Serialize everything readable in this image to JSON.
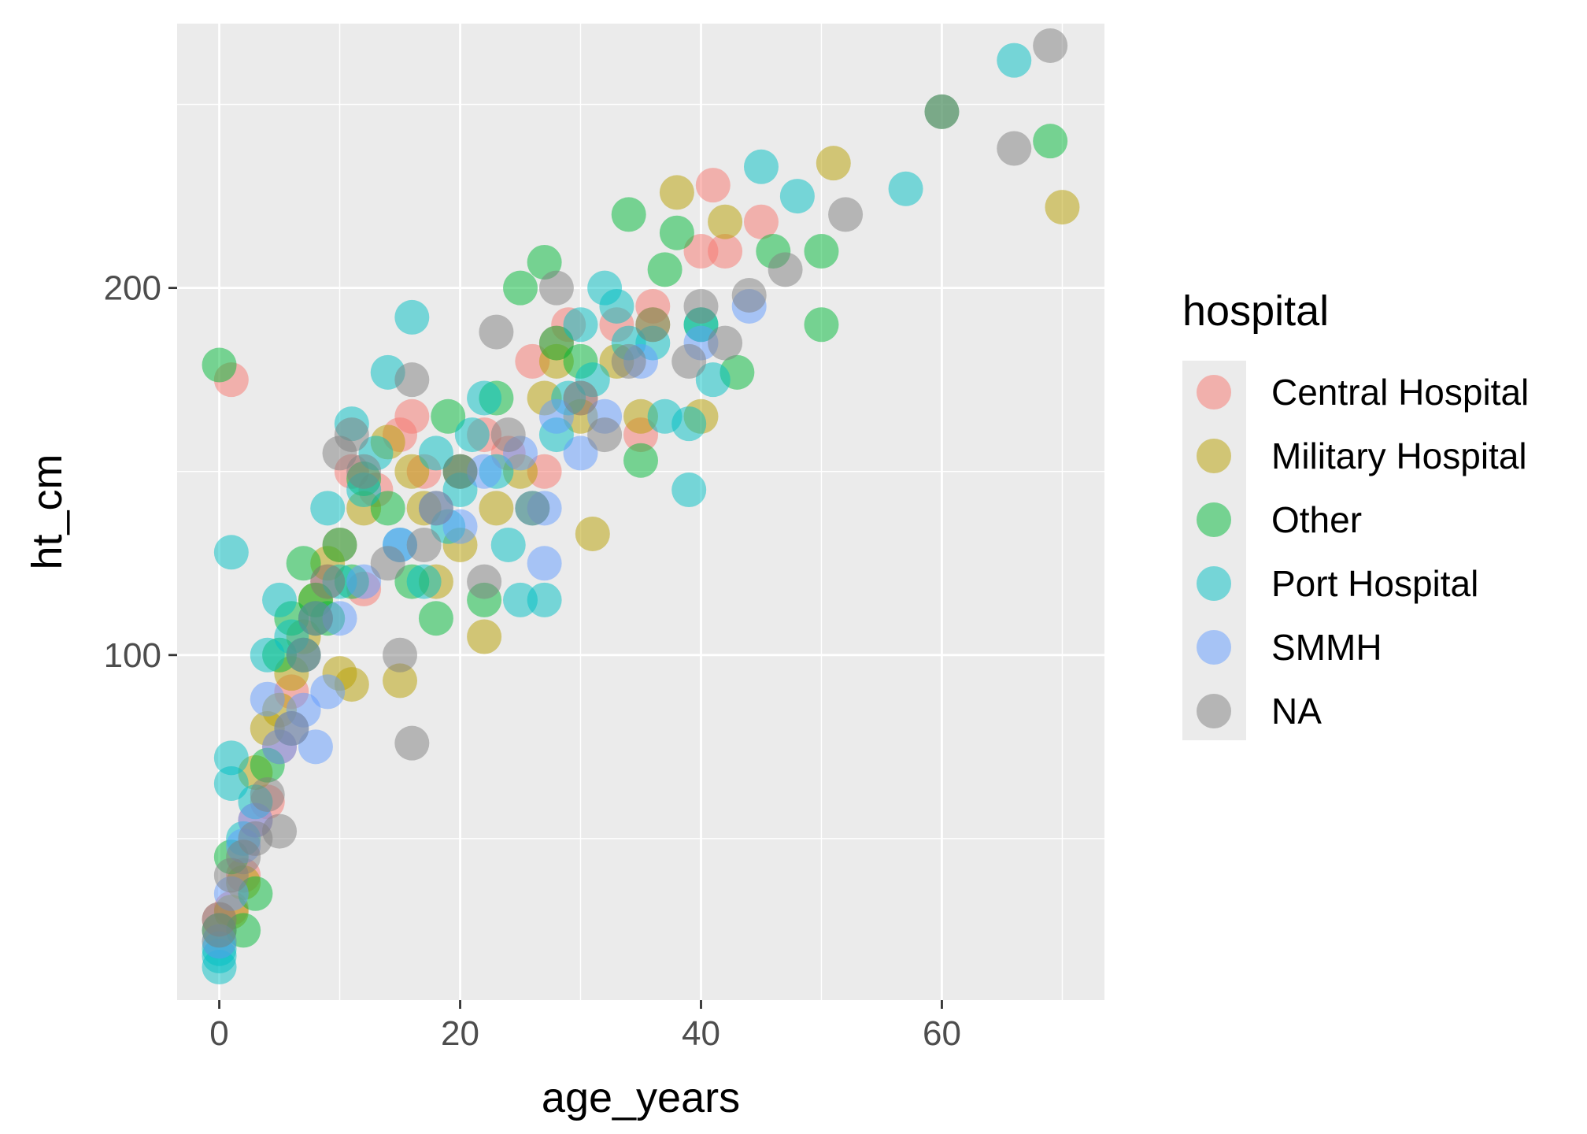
{
  "chart_data": {
    "type": "scatter",
    "title": "",
    "xlabel": "age_years",
    "ylabel": "ht_cm",
    "xlim": [
      -3.5,
      73.5
    ],
    "ylim": [
      6,
      272
    ],
    "x_ticks": [
      0,
      20,
      40,
      60
    ],
    "x_tick_labels": [
      "0",
      "20",
      "40",
      "60"
    ],
    "y_ticks": [
      100,
      200
    ],
    "y_tick_labels": [
      "100",
      "200"
    ],
    "x_minor_ticks": [
      10,
      30,
      50,
      70
    ],
    "y_minor_ticks": [
      50,
      150,
      250
    ],
    "grid": true,
    "panel_background": "#ebebeb",
    "point_alpha": 0.5,
    "legend": {
      "title": "hospital",
      "position": "right"
    },
    "series": [
      {
        "name": "Central Hospital",
        "color": "#F8766D",
        "points": [
          [
            0,
            28
          ],
          [
            1,
            31
          ],
          [
            1,
            175
          ],
          [
            2,
            40
          ],
          [
            3,
            55
          ],
          [
            4,
            60
          ],
          [
            5,
            75
          ],
          [
            6,
            90
          ],
          [
            7,
            100
          ],
          [
            8,
            110
          ],
          [
            9,
            120
          ],
          [
            10,
            130
          ],
          [
            11,
            150
          ],
          [
            12,
            118
          ],
          [
            13,
            145
          ],
          [
            15,
            160
          ],
          [
            16,
            165
          ],
          [
            17,
            150
          ],
          [
            20,
            150
          ],
          [
            22,
            160
          ],
          [
            24,
            155
          ],
          [
            26,
            180
          ],
          [
            27,
            150
          ],
          [
            28,
            185
          ],
          [
            29,
            190
          ],
          [
            30,
            170
          ],
          [
            33,
            190
          ],
          [
            35,
            160
          ],
          [
            36,
            195
          ],
          [
            40,
            210
          ],
          [
            41,
            228
          ],
          [
            42,
            210
          ],
          [
            45,
            218
          ]
        ]
      },
      {
        "name": "Military Hospital",
        "color": "#B79F00",
        "points": [
          [
            0,
            22
          ],
          [
            1,
            30
          ],
          [
            2,
            38
          ],
          [
            3,
            68
          ],
          [
            4,
            80
          ],
          [
            5,
            85
          ],
          [
            6,
            95
          ],
          [
            7,
            105
          ],
          [
            8,
            115
          ],
          [
            9,
            125
          ],
          [
            10,
            95
          ],
          [
            11,
            92
          ],
          [
            12,
            140
          ],
          [
            14,
            158
          ],
          [
            15,
            93
          ],
          [
            16,
            150
          ],
          [
            17,
            140
          ],
          [
            18,
            120
          ],
          [
            20,
            130
          ],
          [
            22,
            105
          ],
          [
            23,
            140
          ],
          [
            25,
            150
          ],
          [
            27,
            170
          ],
          [
            28,
            180
          ],
          [
            30,
            165
          ],
          [
            31,
            133
          ],
          [
            33,
            180
          ],
          [
            35,
            165
          ],
          [
            36,
            190
          ],
          [
            38,
            226
          ],
          [
            40,
            165
          ],
          [
            42,
            218
          ],
          [
            51,
            234
          ],
          [
            70,
            222
          ]
        ]
      },
      {
        "name": "Other",
        "color": "#00BA38",
        "points": [
          [
            0,
            25
          ],
          [
            0,
            179
          ],
          [
            1,
            45
          ],
          [
            2,
            25
          ],
          [
            3,
            35
          ],
          [
            4,
            70
          ],
          [
            5,
            100
          ],
          [
            6,
            110
          ],
          [
            7,
            125
          ],
          [
            8,
            115
          ],
          [
            9,
            110
          ],
          [
            10,
            130
          ],
          [
            11,
            120
          ],
          [
            12,
            148
          ],
          [
            14,
            140
          ],
          [
            16,
            120
          ],
          [
            18,
            110
          ],
          [
            19,
            165
          ],
          [
            20,
            150
          ],
          [
            22,
            115
          ],
          [
            23,
            170
          ],
          [
            25,
            200
          ],
          [
            27,
            207
          ],
          [
            28,
            185
          ],
          [
            30,
            180
          ],
          [
            34,
            220
          ],
          [
            35,
            153
          ],
          [
            37,
            205
          ],
          [
            38,
            215
          ],
          [
            40,
            190
          ],
          [
            43,
            177
          ],
          [
            46,
            210
          ],
          [
            50,
            210
          ],
          [
            50,
            190
          ],
          [
            60,
            248
          ],
          [
            69,
            240
          ]
        ]
      },
      {
        "name": "Port Hospital",
        "color": "#00BFC4",
        "points": [
          [
            0,
            15
          ],
          [
            0,
            18
          ],
          [
            0,
            20
          ],
          [
            1,
            72
          ],
          [
            1,
            65
          ],
          [
            1,
            128
          ],
          [
            2,
            50
          ],
          [
            3,
            60
          ],
          [
            4,
            100
          ],
          [
            5,
            115
          ],
          [
            6,
            105
          ],
          [
            7,
            100
          ],
          [
            8,
            110
          ],
          [
            9,
            140
          ],
          [
            10,
            120
          ],
          [
            11,
            163
          ],
          [
            12,
            145
          ],
          [
            13,
            155
          ],
          [
            14,
            177
          ],
          [
            15,
            130
          ],
          [
            16,
            192
          ],
          [
            17,
            120
          ],
          [
            18,
            155
          ],
          [
            19,
            135
          ],
          [
            20,
            145
          ],
          [
            21,
            160
          ],
          [
            22,
            170
          ],
          [
            23,
            150
          ],
          [
            24,
            130
          ],
          [
            25,
            115
          ],
          [
            26,
            140
          ],
          [
            27,
            115
          ],
          [
            28,
            160
          ],
          [
            29,
            170
          ],
          [
            30,
            190
          ],
          [
            31,
            175
          ],
          [
            32,
            200
          ],
          [
            33,
            195
          ],
          [
            34,
            185
          ],
          [
            36,
            185
          ],
          [
            37,
            165
          ],
          [
            39,
            163
          ],
          [
            39,
            145
          ],
          [
            40,
            190
          ],
          [
            41,
            175
          ],
          [
            45,
            233
          ],
          [
            48,
            225
          ],
          [
            57,
            227
          ],
          [
            66,
            262
          ]
        ]
      },
      {
        "name": "SMMH",
        "color": "#619CFF",
        "points": [
          [
            0,
            22
          ],
          [
            1,
            35
          ],
          [
            2,
            48
          ],
          [
            3,
            55
          ],
          [
            4,
            88
          ],
          [
            5,
            75
          ],
          [
            6,
            80
          ],
          [
            7,
            85
          ],
          [
            8,
            75
          ],
          [
            9,
            90
          ],
          [
            10,
            110
          ],
          [
            12,
            120
          ],
          [
            15,
            130
          ],
          [
            18,
            140
          ],
          [
            20,
            135
          ],
          [
            22,
            150
          ],
          [
            25,
            155
          ],
          [
            27,
            140
          ],
          [
            27,
            125
          ],
          [
            28,
            165
          ],
          [
            30,
            155
          ],
          [
            32,
            165
          ],
          [
            35,
            180
          ],
          [
            40,
            185
          ],
          [
            44,
            195
          ]
        ]
      },
      {
        "name": "NA",
        "color": "#808080",
        "points": [
          [
            0,
            28
          ],
          [
            0,
            25
          ],
          [
            1,
            40
          ],
          [
            2,
            45
          ],
          [
            3,
            50
          ],
          [
            4,
            62
          ],
          [
            5,
            52
          ],
          [
            6,
            80
          ],
          [
            7,
            100
          ],
          [
            8,
            110
          ],
          [
            9,
            120
          ],
          [
            10,
            155
          ],
          [
            11,
            160
          ],
          [
            12,
            150
          ],
          [
            14,
            125
          ],
          [
            15,
            100
          ],
          [
            16,
            175
          ],
          [
            16,
            76
          ],
          [
            17,
            130
          ],
          [
            18,
            140
          ],
          [
            20,
            150
          ],
          [
            22,
            120
          ],
          [
            23,
            188
          ],
          [
            24,
            160
          ],
          [
            26,
            140
          ],
          [
            28,
            200
          ],
          [
            30,
            170
          ],
          [
            32,
            160
          ],
          [
            34,
            180
          ],
          [
            36,
            190
          ],
          [
            39,
            180
          ],
          [
            40,
            195
          ],
          [
            42,
            185
          ],
          [
            44,
            198
          ],
          [
            47,
            205
          ],
          [
            52,
            220
          ],
          [
            60,
            248
          ],
          [
            66,
            238
          ],
          [
            69,
            266
          ]
        ]
      }
    ]
  }
}
